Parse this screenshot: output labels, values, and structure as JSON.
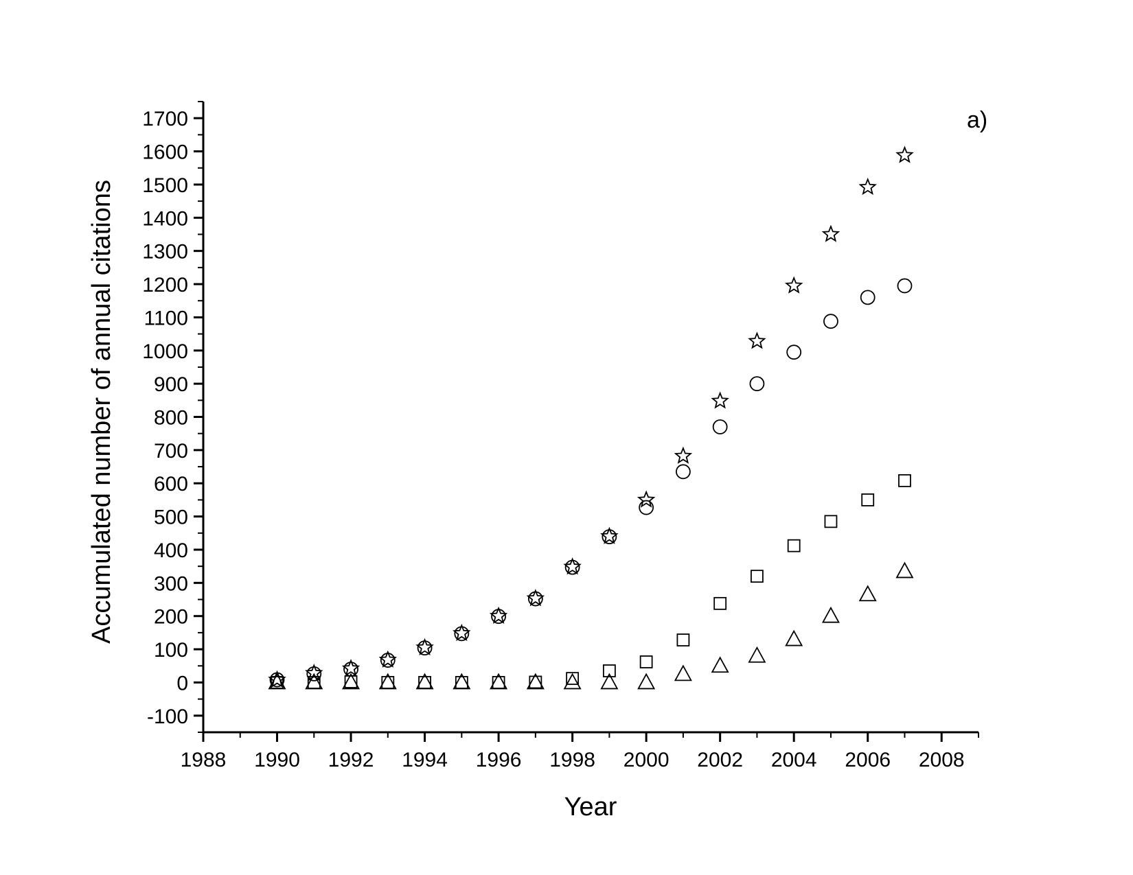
{
  "chart_data": {
    "type": "scatter",
    "panel_label": "a)",
    "xlabel": "Year",
    "ylabel": "Accumulated number of annual citations",
    "xlim": [
      1988,
      2009
    ],
    "ylim": [
      -150,
      1750
    ],
    "x_major_ticks": [
      1988,
      1990,
      1992,
      1994,
      1996,
      1998,
      2000,
      2002,
      2004,
      2006,
      2008
    ],
    "x_tick_labels": [
      "1988",
      "1990",
      "1992",
      "1994",
      "1996",
      "1998",
      "2000",
      "2002",
      "2004",
      "2006",
      "2008"
    ],
    "y_major_ticks": [
      -100,
      0,
      100,
      200,
      300,
      400,
      500,
      600,
      700,
      800,
      900,
      1000,
      1100,
      1200,
      1300,
      1400,
      1500,
      1600,
      1700
    ],
    "y_tick_labels": [
      "-100",
      "0",
      "100",
      "200",
      "300",
      "400",
      "500",
      "600",
      "700",
      "800",
      "900",
      "1000",
      "1100",
      "1200",
      "1300",
      "1400",
      "1500",
      "1600",
      "1700"
    ],
    "grid": false,
    "legend": "none",
    "x": [
      1990,
      1991,
      1992,
      1993,
      1994,
      1995,
      1996,
      1997,
      1998,
      1999,
      2000,
      2001,
      2002,
      2003,
      2004,
      2005,
      2006,
      2007
    ],
    "series": [
      {
        "marker": "star",
        "values": [
          8,
          28,
          42,
          68,
          105,
          148,
          200,
          253,
          348,
          440,
          550,
          682,
          848,
          1028,
          1195,
          1350,
          1492,
          1588
        ]
      },
      {
        "marker": "circle",
        "values": [
          8,
          26,
          40,
          67,
          104,
          147,
          199,
          252,
          347,
          439,
          527,
          635,
          770,
          900,
          995,
          1088,
          1160,
          1195
        ]
      },
      {
        "marker": "square",
        "values": [
          0,
          0,
          2,
          0,
          0,
          0,
          0,
          1,
          12,
          35,
          62,
          128,
          238,
          320,
          412,
          485,
          550,
          608
        ]
      },
      {
        "marker": "triangle",
        "values": [
          0,
          0,
          0,
          0,
          0,
          0,
          0,
          0,
          0,
          0,
          0,
          25,
          50,
          80,
          130,
          200,
          265,
          335
        ]
      }
    ]
  }
}
